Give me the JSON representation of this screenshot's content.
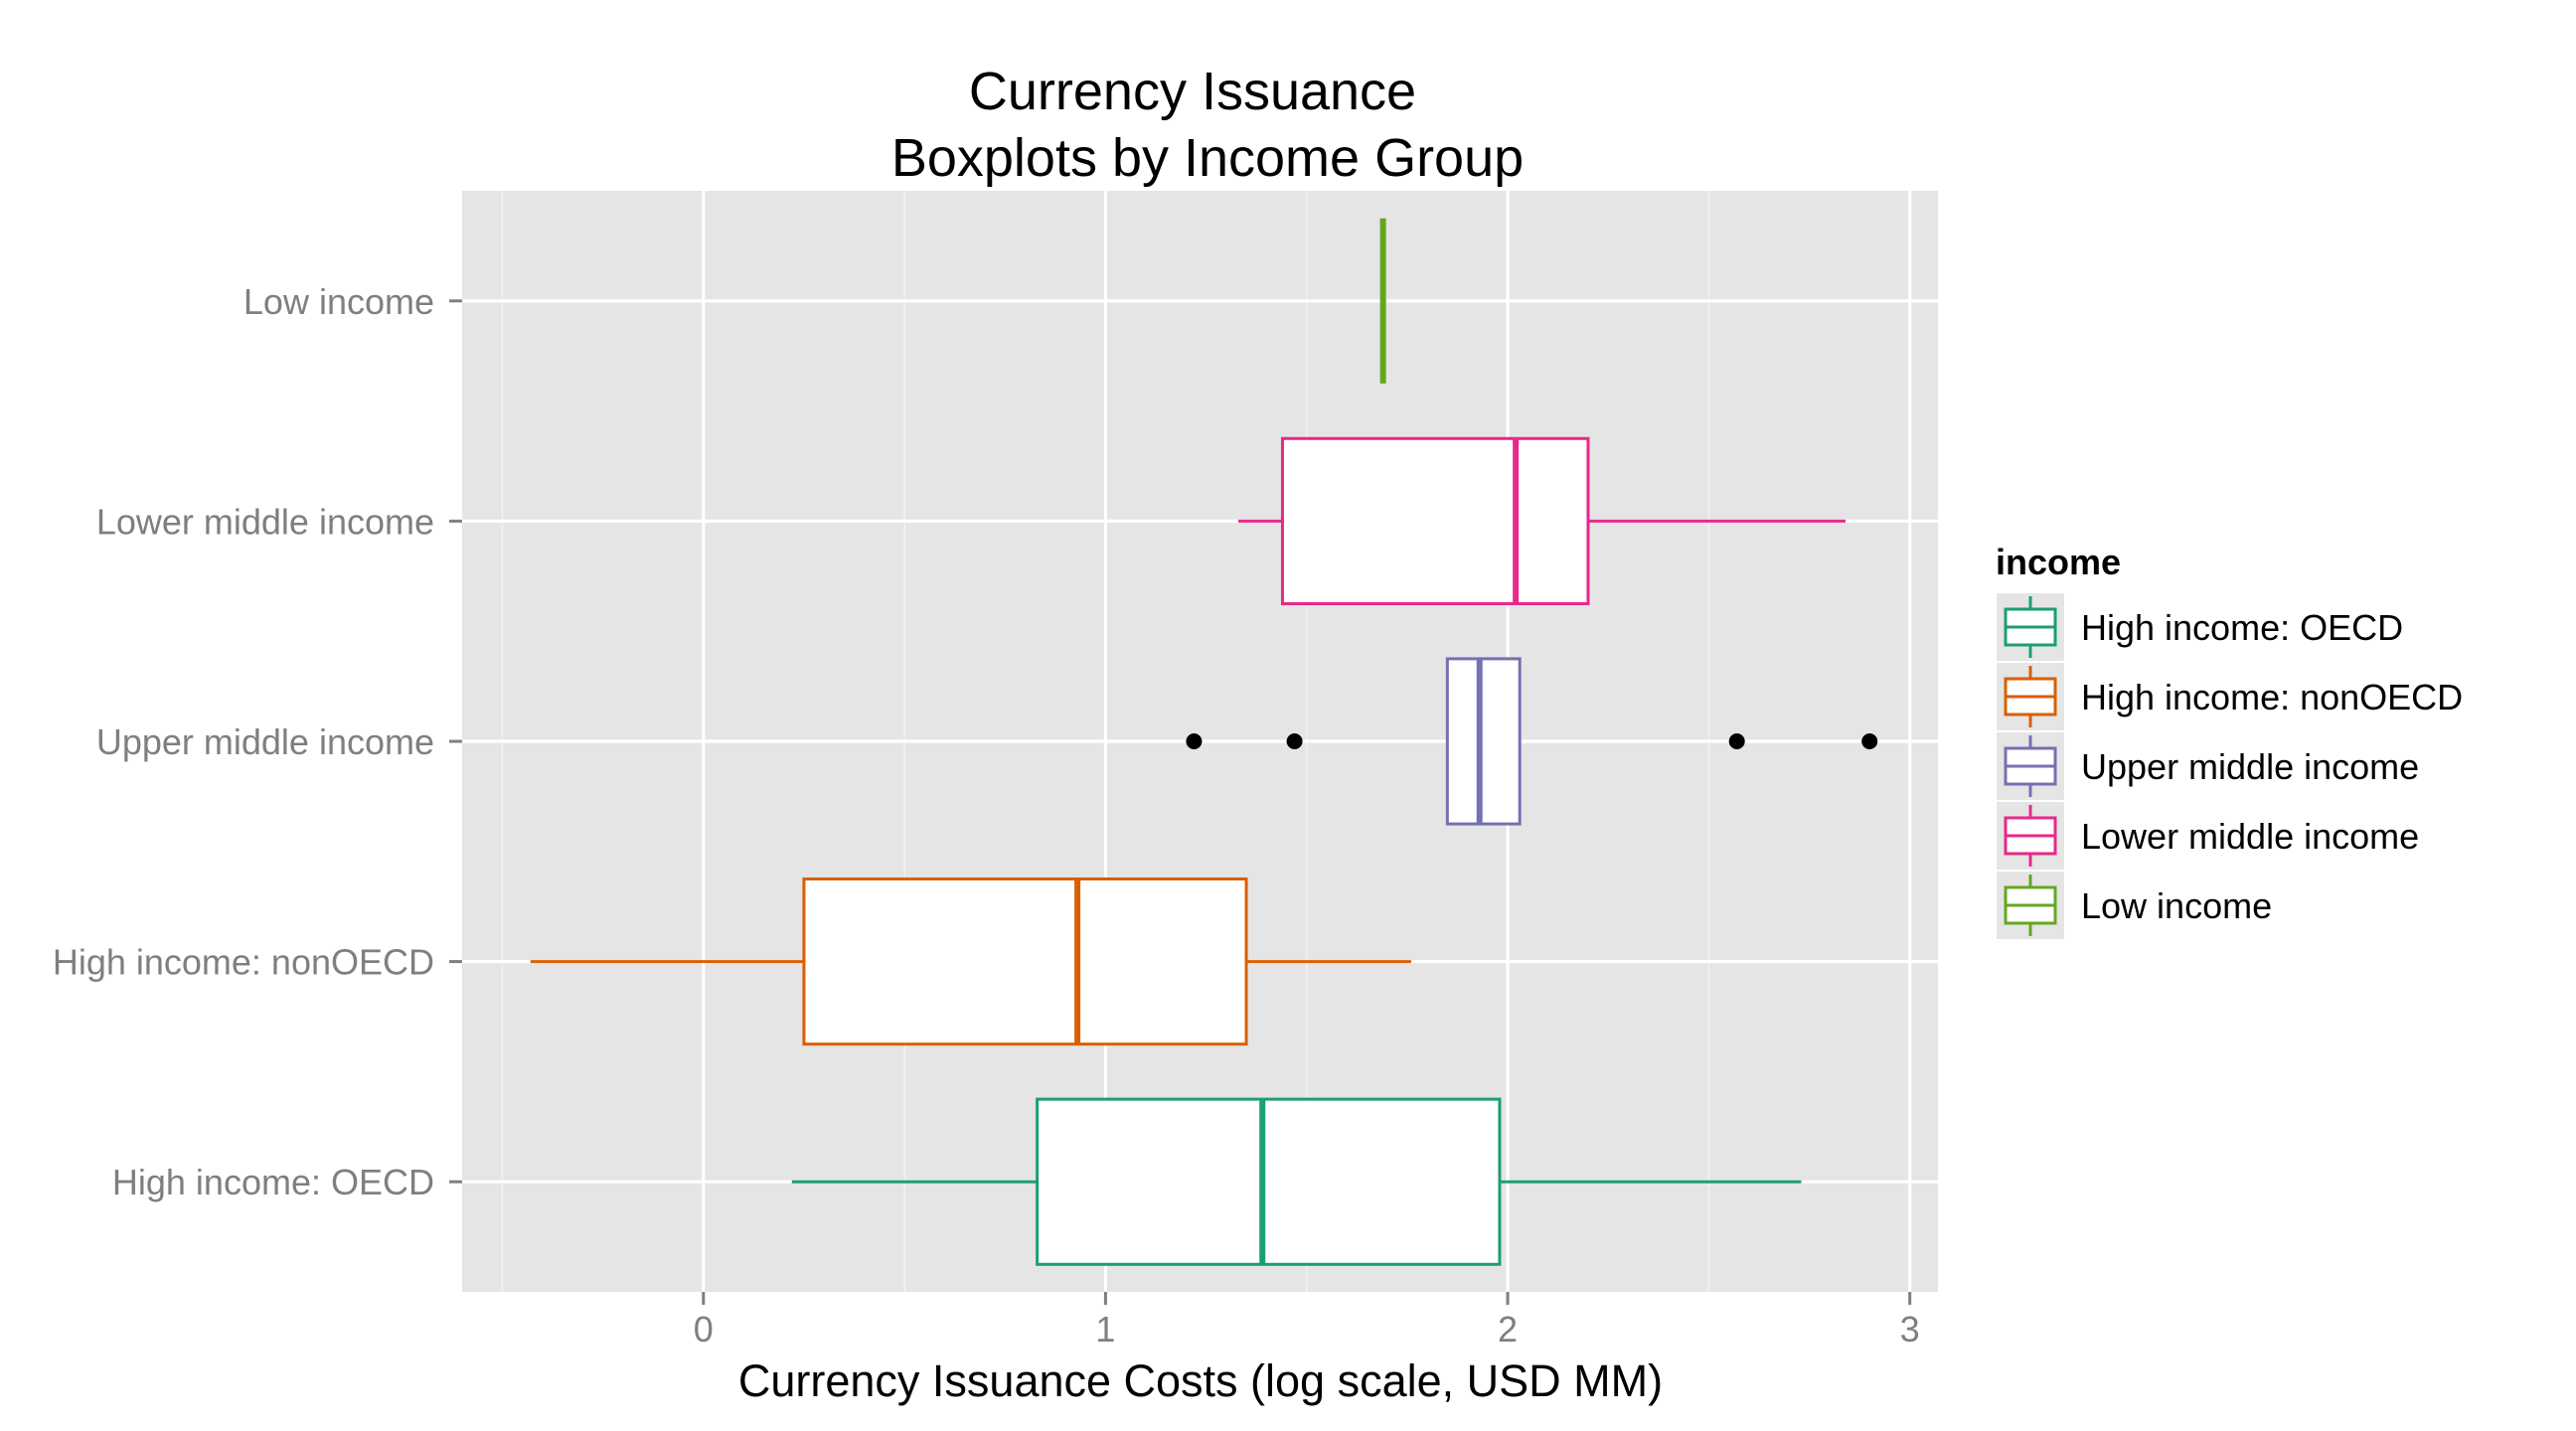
{
  "chart_data": {
    "type": "boxplot",
    "orientation": "horizontal",
    "title": "Currency Issuance\nBoxplots by Income Group",
    "title_lines": [
      "Currency Issuance",
      "Boxplots by Income Group"
    ],
    "xlabel": "Currency Issuance Costs (log scale, USD MM)",
    "ylabel": "",
    "xlim": [
      -0.6,
      3.07
    ],
    "x_ticks": [
      0,
      1,
      2,
      3
    ],
    "x_tick_labels": [
      "0",
      "1",
      "2",
      "3"
    ],
    "categories": [
      "High income: OECD",
      "High income: nonOECD",
      "Upper middle income",
      "Lower middle income",
      "Low income"
    ],
    "grid": true,
    "panel_background": "#e5e5e5",
    "grid_color": "#ffffff",
    "legend": {
      "title": "income",
      "placement": "right",
      "entries": [
        "High income: OECD",
        "High income: nonOECD",
        "Upper middle income",
        "Lower middle income",
        "Low income"
      ]
    },
    "series": [
      {
        "name": "High income: OECD",
        "color": "#1b9e77",
        "whisker_low": 0.22,
        "q1": 0.83,
        "median": 1.39,
        "q3": 1.98,
        "whisker_high": 2.73,
        "outliers": []
      },
      {
        "name": "High income: nonOECD",
        "color": "#d95f02",
        "whisker_low": -0.43,
        "q1": 0.25,
        "median": 0.93,
        "q3": 1.35,
        "whisker_high": 1.76,
        "outliers": []
      },
      {
        "name": "Upper middle income",
        "color": "#7570b3",
        "whisker_low": 1.85,
        "q1": 1.85,
        "median": 1.93,
        "q3": 2.03,
        "whisker_high": 2.03,
        "outliers": [
          1.22,
          1.47,
          2.57,
          2.9
        ]
      },
      {
        "name": "Lower middle income",
        "color": "#e7298a",
        "whisker_low": 1.33,
        "q1": 1.44,
        "median": 2.02,
        "q3": 2.2,
        "whisker_high": 2.84,
        "outliers": []
      },
      {
        "name": "Low income",
        "color": "#66a61e",
        "whisker_low": 1.69,
        "q1": 1.69,
        "median": 1.69,
        "q3": 1.69,
        "whisker_high": 1.69,
        "outliers": []
      }
    ]
  }
}
